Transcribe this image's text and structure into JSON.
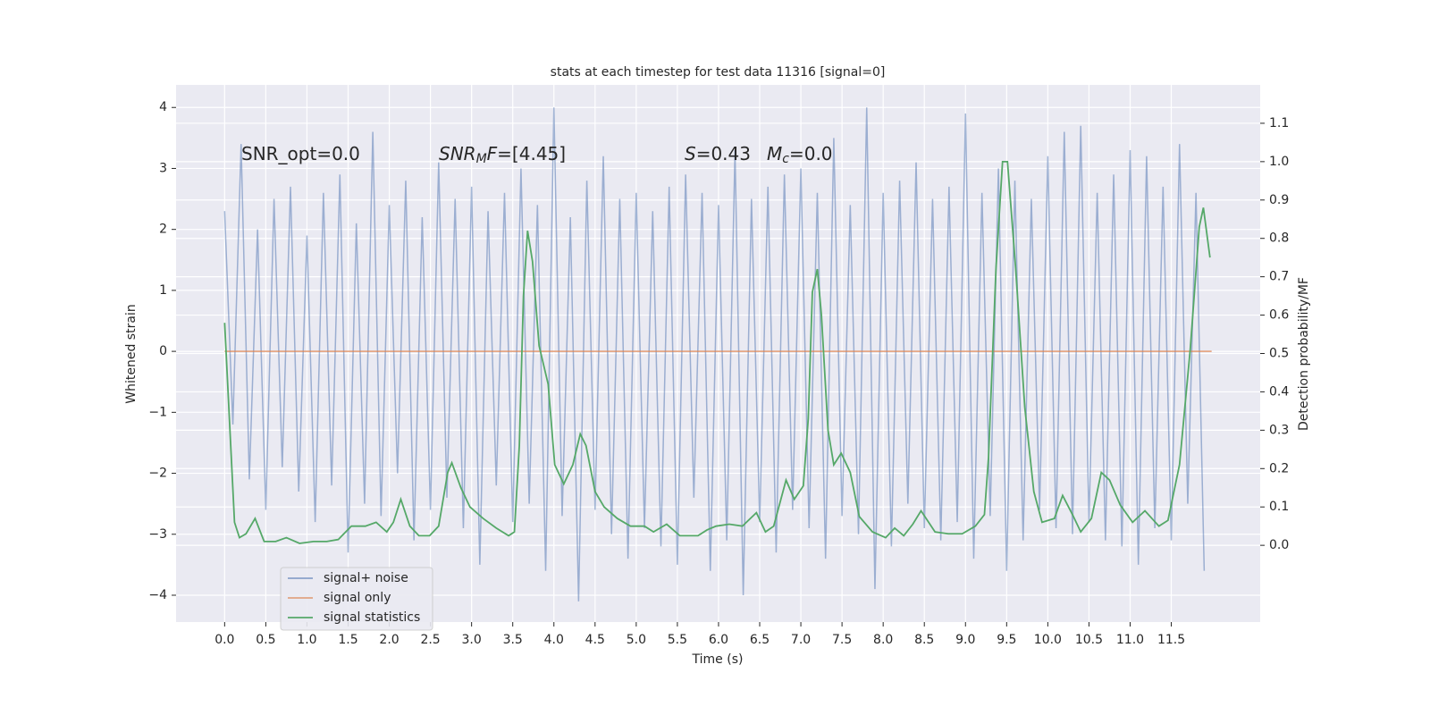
{
  "chart_data": {
    "type": "line",
    "title": "stats at each timestep for test data 11316 [signal=0]",
    "xlabel": "Time (s)",
    "ylabel": "Whitened strain",
    "y2label": "Detection probability/MF",
    "xlim": [
      -0.59,
      12.58
    ],
    "ylim": [
      -4.44,
      4.37
    ],
    "y2lim": [
      -0.2,
      1.2
    ],
    "xticks": [
      {
        "value": 0,
        "label": "0.0"
      },
      0.5,
      {
        "value": 1,
        "label": "1.0"
      },
      1.5,
      {
        "value": 2,
        "label": "2.0"
      },
      2.5,
      {
        "value": 3,
        "label": "3.0"
      },
      3.5,
      {
        "value": 4,
        "label": "4.0"
      },
      4.5,
      {
        "value": 5,
        "label": "5.0"
      },
      5.5,
      {
        "value": 6,
        "label": "6.0"
      },
      6.5,
      {
        "value": 7,
        "label": "7.0"
      },
      7.5,
      {
        "value": 8,
        "label": "8.0"
      },
      8.5,
      {
        "value": 9,
        "label": "9.0"
      },
      9.5,
      {
        "value": 10,
        "label": "10.0"
      },
      10.5,
      {
        "value": 11,
        "label": "11.0"
      },
      11.5
    ],
    "yticks": [
      {
        "value": -4,
        "label": "−4"
      },
      {
        "value": -3,
        "label": "−3"
      },
      {
        "value": -2,
        "label": "−2"
      },
      {
        "value": -1,
        "label": "−1"
      },
      0,
      1,
      2,
      3,
      4
    ],
    "y2ticks": [
      {
        "value": 0,
        "label": "0.0"
      },
      0.1,
      0.2,
      0.3,
      0.4,
      0.5,
      0.6,
      0.7,
      0.8,
      0.9,
      {
        "value": 1,
        "label": "1.0"
      },
      1.1
    ],
    "grid": true,
    "legend": "lower left",
    "annotations": [
      {
        "segments": [
          {
            "text": "SNR_opt=0.0"
          }
        ]
      },
      {
        "segments": [
          {
            "text": "SNR",
            "italic": true
          },
          {
            "text": "M",
            "italic": true,
            "sub": true
          },
          {
            "text": "F",
            "italic": true
          },
          {
            "text": "=[4.45]"
          }
        ]
      },
      {
        "segments": [
          {
            "text": "S",
            "italic": true
          },
          {
            "text": "=0.43"
          }
        ]
      },
      {
        "segments": [
          {
            "text": "M",
            "italic": true
          },
          {
            "text": "c",
            "italic": true,
            "sub": true
          },
          {
            "text": "=0.0"
          }
        ]
      }
    ],
    "series": [
      {
        "name": "signal+ noise",
        "color": "#4c72b0",
        "x": [
          0,
          0.1,
          0.2,
          0.3,
          0.4,
          0.5,
          0.6,
          0.7,
          0.8,
          0.9,
          1,
          1.1,
          1.2,
          1.3,
          1.4,
          1.5,
          1.6,
          1.7,
          1.8,
          1.9,
          2,
          2.1,
          2.2,
          2.3,
          2.4,
          2.5,
          2.6,
          2.7,
          2.8,
          2.9,
          3,
          3.1,
          3.2,
          3.3,
          3.4,
          3.5,
          3.6,
          3.7,
          3.8,
          3.9,
          4,
          4.1,
          4.2,
          4.3,
          4.4,
          4.5,
          4.6,
          4.7,
          4.8,
          4.9,
          5,
          5.1,
          5.2,
          5.3,
          5.4,
          5.5,
          5.6,
          5.7,
          5.8,
          5.9,
          6,
          6.1,
          6.2,
          6.3,
          6.4,
          6.5,
          6.6,
          6.7,
          6.8,
          6.9,
          7,
          7.1,
          7.2,
          7.3,
          7.4,
          7.5,
          7.6,
          7.7,
          7.8,
          7.9,
          8,
          8.1,
          8.2,
          8.3,
          8.4,
          8.5,
          8.6,
          8.7,
          8.8,
          8.9,
          9,
          9.1,
          9.2,
          9.3,
          9.4,
          9.5,
          9.6,
          9.7,
          9.8,
          9.9,
          10,
          10.1,
          10.2,
          10.3,
          10.4,
          10.5,
          10.6,
          10.7,
          10.8,
          10.9,
          11,
          11.1,
          11.2,
          11.3,
          11.4,
          11.5,
          11.6,
          11.7,
          11.8,
          11.9
        ],
        "values": [
          2.3,
          -1.2,
          3.4,
          -2.1,
          2.0,
          -2.6,
          2.5,
          -1.9,
          2.7,
          -2.3,
          1.9,
          -2.8,
          2.6,
          -2.2,
          2.9,
          -3.3,
          2.1,
          -2.5,
          3.6,
          -2.7,
          2.4,
          -2.0,
          2.8,
          -3.1,
          2.2,
          -2.6,
          3.1,
          -2.4,
          2.5,
          -2.9,
          2.7,
          -3.5,
          2.3,
          -2.2,
          2.6,
          -2.8,
          3.0,
          -2.5,
          2.4,
          -3.6,
          4.0,
          -2.7,
          2.2,
          -4.1,
          2.8,
          -2.6,
          3.2,
          -3.0,
          2.5,
          -3.4,
          2.6,
          -2.9,
          2.3,
          -3.2,
          2.7,
          -3.5,
          2.9,
          -2.4,
          2.6,
          -3.6,
          2.4,
          -3.1,
          3.3,
          -4.0,
          2.5,
          -2.8,
          2.7,
          -3.3,
          2.9,
          -2.6,
          3.0,
          -2.9,
          2.6,
          -3.4,
          3.5,
          -2.7,
          2.4,
          -3.0,
          4.0,
          -3.9,
          2.6,
          -3.2,
          2.8,
          -2.5,
          3.1,
          -2.9,
          2.5,
          -3.1,
          2.7,
          -2.8,
          3.9,
          -3.4,
          2.6,
          -2.7,
          3.0,
          -3.6,
          2.8,
          -3.1,
          2.5,
          -2.6,
          3.2,
          -2.9,
          3.6,
          -3.0,
          3.7,
          -2.8,
          2.6,
          -3.1,
          2.9,
          -3.2,
          3.3,
          -3.5,
          3.2,
          -2.9,
          2.7,
          -3.1,
          3.4,
          -2.5,
          2.6,
          -3.6
        ]
      },
      {
        "name": "signal only",
        "color": "#dd8452",
        "x": [
          0,
          11.99
        ],
        "values": [
          0,
          0
        ]
      },
      {
        "name": "signal statistics",
        "color": "#55a868",
        "axis": "y2",
        "x": [
          0,
          0.12,
          0.18,
          0.26,
          0.37,
          0.48,
          0.62,
          0.75,
          0.91,
          1.08,
          1.24,
          1.38,
          1.54,
          1.71,
          1.84,
          1.97,
          2.05,
          2.14,
          2.25,
          2.36,
          2.49,
          2.6,
          2.71,
          2.76,
          2.87,
          2.98,
          3.14,
          3.3,
          3.45,
          3.52,
          3.58,
          3.63,
          3.68,
          3.74,
          3.82,
          3.93,
          4.01,
          4.12,
          4.23,
          4.32,
          4.39,
          4.5,
          4.61,
          4.77,
          4.93,
          5.1,
          5.21,
          5.37,
          5.53,
          5.75,
          5.86,
          5.97,
          6.13,
          6.29,
          6.46,
          6.57,
          6.67,
          6.82,
          6.92,
          7.03,
          7.09,
          7.14,
          7.2,
          7.25,
          7.33,
          7.4,
          7.49,
          7.6,
          7.71,
          7.87,
          8.03,
          8.14,
          8.25,
          8.36,
          8.46,
          8.63,
          8.79,
          8.96,
          9.12,
          9.23,
          9.28,
          9.37,
          9.45,
          9.51,
          9.61,
          9.72,
          9.83,
          9.93,
          10.08,
          10.18,
          10.3,
          10.4,
          10.53,
          10.65,
          10.75,
          10.88,
          11.03,
          11.18,
          11.35,
          11.46,
          11.6,
          11.73,
          11.84,
          11.89,
          11.97
        ],
        "values": [
          0.58,
          0.06,
          0.02,
          0.03,
          0.07,
          0.01,
          0.01,
          0.02,
          0.005,
          0.01,
          0.01,
          0.015,
          0.05,
          0.05,
          0.06,
          0.035,
          0.06,
          0.12,
          0.05,
          0.025,
          0.025,
          0.05,
          0.19,
          0.215,
          0.15,
          0.1,
          0.07,
          0.045,
          0.025,
          0.035,
          0.26,
          0.65,
          0.82,
          0.74,
          0.52,
          0.42,
          0.21,
          0.16,
          0.21,
          0.29,
          0.26,
          0.14,
          0.1,
          0.07,
          0.05,
          0.05,
          0.035,
          0.055,
          0.025,
          0.025,
          0.04,
          0.05,
          0.055,
          0.05,
          0.085,
          0.035,
          0.05,
          0.17,
          0.12,
          0.155,
          0.33,
          0.66,
          0.72,
          0.6,
          0.3,
          0.21,
          0.24,
          0.19,
          0.075,
          0.035,
          0.02,
          0.045,
          0.025,
          0.055,
          0.09,
          0.035,
          0.03,
          0.03,
          0.05,
          0.08,
          0.23,
          0.72,
          1.0,
          1.0,
          0.72,
          0.36,
          0.14,
          0.06,
          0.07,
          0.13,
          0.08,
          0.035,
          0.07,
          0.19,
          0.17,
          0.105,
          0.06,
          0.09,
          0.05,
          0.065,
          0.21,
          0.51,
          0.83,
          0.88,
          0.75
        ]
      }
    ]
  }
}
